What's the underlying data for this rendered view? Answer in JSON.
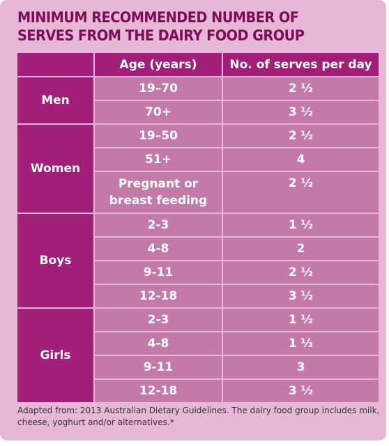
{
  "title": "MINIMUM RECOMMENDED NUMBER OF SERVES FROM THE DAIRY FOOD GROUP",
  "table": {
    "headers": [
      "",
      "Age (years)",
      "No. of serves per day"
    ],
    "groups": [
      {
        "name": "Men",
        "rows": [
          {
            "age": "19–70",
            "serves": "2 ½"
          },
          {
            "age": "70+",
            "serves": "3 ½"
          }
        ]
      },
      {
        "name": "Women",
        "rows": [
          {
            "age": "19–50",
            "serves": "2 ½"
          },
          {
            "age": "51+",
            "serves": "4"
          },
          {
            "age": "Pregnant or breast feeding",
            "serves": "2 ½"
          }
        ]
      },
      {
        "name": "Boys",
        "rows": [
          {
            "age": "2-3",
            "serves": "1 ½"
          },
          {
            "age": "4-8",
            "serves": "2"
          },
          {
            "age": "9-11",
            "serves": "2 ½"
          },
          {
            "age": "12-18",
            "serves": "3 ½"
          }
        ]
      },
      {
        "name": "Girls",
        "rows": [
          {
            "age": "2-3",
            "serves": "1 ½"
          },
          {
            "age": "4-8",
            "serves": "1 ½"
          },
          {
            "age": "9-11",
            "serves": "3"
          },
          {
            "age": "12-18",
            "serves": "3 ½"
          }
        ]
      }
    ]
  },
  "footnote": "Adapted from: 2013 Australian Dietary Guidelines. The dairy food group includes milk, cheese, yoghurt and/or alternatives.*",
  "colors": {
    "background": "#e6b8d6",
    "header_fill": "#a11f79",
    "cell_fill": "#c47aa9",
    "title_text": "#7d0d5a"
  }
}
